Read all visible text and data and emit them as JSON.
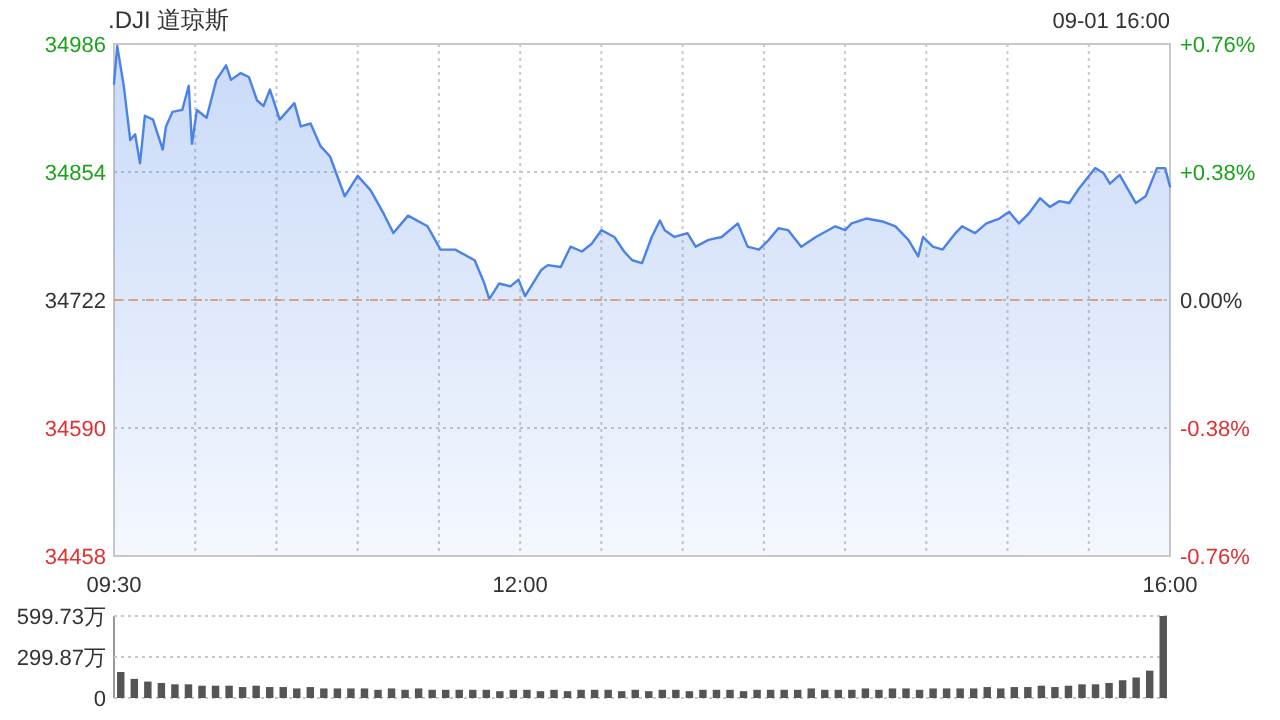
{
  "chart_data": [
    {
      "type": "area",
      "title": ".DJI 道琼斯",
      "subtitle": "09-01 16:00",
      "xlim": [
        9.5,
        16
      ],
      "xticks": [
        {
          "value": 9.5,
          "label": "09:30"
        },
        {
          "value": 10,
          "label": null
        },
        {
          "value": 10.5,
          "label": null
        },
        {
          "value": 11,
          "label": null
        },
        {
          "value": 11.5,
          "label": null
        },
        {
          "value": 12,
          "label": "12:00"
        },
        {
          "value": 12.5,
          "label": null
        },
        {
          "value": 13,
          "label": null
        },
        {
          "value": 13.5,
          "label": null
        },
        {
          "value": 14,
          "label": null
        },
        {
          "value": 14.5,
          "label": null
        },
        {
          "value": 15,
          "label": null
        },
        {
          "value": 15.5,
          "label": null
        },
        {
          "value": 16,
          "label": "16:00"
        }
      ],
      "ylim": [
        34458,
        34986
      ],
      "yticks": [
        34458,
        34590,
        34722,
        34854,
        34986
      ],
      "y2lim": [
        -0.76,
        0.76
      ],
      "y2ticks": [
        {
          "value": -0.76,
          "label": "-0.76%"
        },
        {
          "value": -0.38,
          "label": "-0.38%"
        },
        {
          "value": 0,
          "label": "0.00%"
        },
        {
          "value": 0.38,
          "label": "+0.38%"
        },
        {
          "value": 0.76,
          "label": "+0.76%"
        }
      ],
      "grid": true,
      "ref_lines": [
        {
          "axis": "y",
          "value": 34722,
          "color": "#e0a080",
          "line_style": "dashed"
        }
      ],
      "series": [
        {
          "color": "#4b82e8",
          "x": [
            9.5,
            9.52,
            9.56,
            9.6,
            9.63,
            9.66,
            9.69,
            9.74,
            9.8,
            9.82,
            9.86,
            9.92,
            9.96,
            9.98,
            10.01,
            10.07,
            10.13,
            10.19,
            10.22,
            10.28,
            10.33,
            10.38,
            10.42,
            10.46,
            10.52,
            10.61,
            10.65,
            10.71,
            10.77,
            10.83,
            10.92,
            11.0,
            11.08,
            11.16,
            11.22,
            11.31,
            11.43,
            11.51,
            11.6,
            11.72,
            11.78,
            11.81,
            11.87,
            11.94,
            11.99,
            12.03,
            12.13,
            12.17,
            12.25,
            12.31,
            12.38,
            12.44,
            12.5,
            12.58,
            12.64,
            12.69,
            12.75,
            12.81,
            12.86,
            12.89,
            12.95,
            13.03,
            13.08,
            13.16,
            13.24,
            13.34,
            13.4,
            13.47,
            13.53,
            13.59,
            13.65,
            13.73,
            13.82,
            13.94,
            14.0,
            14.04,
            14.13,
            14.23,
            14.31,
            14.39,
            14.45,
            14.48,
            14.54,
            14.6,
            14.68,
            14.72,
            14.8,
            14.87,
            14.95,
            15.01,
            15.07,
            15.13,
            15.2,
            15.26,
            15.32,
            15.38,
            15.44,
            15.54,
            15.59,
            15.63,
            15.69,
            15.79,
            15.85,
            15.92,
            15.97,
            16.0
          ],
          "values": [
            34945,
            34984,
            34943,
            34887,
            34893,
            34863,
            34912,
            34908,
            34877,
            34901,
            34916,
            34918,
            34943,
            34883,
            34918,
            34910,
            34949,
            34964,
            34949,
            34956,
            34952,
            34928,
            34922,
            34939,
            34908,
            34925,
            34901,
            34904,
            34881,
            34870,
            34829,
            34850,
            34835,
            34811,
            34791,
            34809,
            34798,
            34774,
            34774,
            34763,
            34739,
            34723,
            34739,
            34736,
            34743,
            34726,
            34753,
            34758,
            34756,
            34777,
            34772,
            34780,
            34794,
            34787,
            34772,
            34763,
            34760,
            34787,
            34804,
            34794,
            34787,
            34791,
            34777,
            34784,
            34787,
            34801,
            34777,
            34774,
            34784,
            34796,
            34794,
            34777,
            34787,
            34798,
            34794,
            34801,
            34806,
            34803,
            34798,
            34784,
            34767,
            34787,
            34777,
            34774,
            34791,
            34798,
            34791,
            34801,
            34806,
            34813,
            34801,
            34811,
            34827,
            34818,
            34824,
            34822,
            34837,
            34858,
            34853,
            34842,
            34851,
            34822,
            34829,
            34858,
            34858,
            34839
          ]
        }
      ]
    },
    {
      "type": "bar",
      "categories": [
        null,
        null,
        null,
        null,
        null,
        null,
        null,
        null,
        null,
        null,
        null,
        null,
        null,
        null,
        null,
        null,
        null,
        null,
        null,
        null,
        null,
        null,
        null,
        null,
        null,
        null,
        null,
        null,
        null,
        null,
        null,
        null,
        null,
        null,
        null,
        null,
        null,
        null,
        null,
        null,
        null,
        null,
        null,
        null,
        null,
        null,
        null,
        null,
        null,
        null,
        null,
        null,
        null,
        null,
        null,
        null,
        null,
        null,
        null,
        null,
        null,
        null,
        null,
        null,
        null,
        null,
        null,
        null,
        null,
        null,
        null,
        null,
        null,
        null,
        null,
        null,
        null,
        null
      ],
      "ylim": [
        0,
        599.73
      ],
      "yticks": [
        0,
        {
          "value": 299.87,
          "label": "299.87万"
        },
        {
          "value": 599.73,
          "label": "599.73万"
        }
      ],
      "grid": "y",
      "tick_labels": "y",
      "series": [
        {
          "color": "#555555",
          "values": [
            190,
            140,
            120,
            110,
            100,
            100,
            90,
            90,
            90,
            80,
            90,
            80,
            80,
            70,
            80,
            70,
            70,
            70,
            70,
            60,
            70,
            60,
            70,
            60,
            60,
            60,
            60,
            60,
            50,
            60,
            60,
            50,
            60,
            50,
            60,
            60,
            60,
            50,
            60,
            50,
            60,
            60,
            50,
            60,
            60,
            60,
            50,
            60,
            60,
            60,
            60,
            70,
            60,
            60,
            60,
            70,
            60,
            70,
            70,
            60,
            70,
            70,
            70,
            70,
            80,
            70,
            80,
            80,
            90,
            80,
            90,
            100,
            100,
            110,
            130,
            150,
            200,
            599.73
          ]
        }
      ]
    }
  ]
}
